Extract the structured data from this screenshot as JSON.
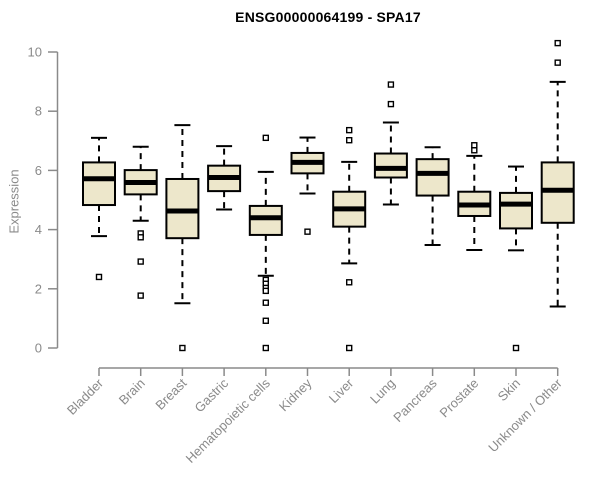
{
  "chart_data": {
    "type": "boxplot",
    "title": "ENSG00000064199 - SPA17",
    "ylabel": "Expression",
    "xlabel": "",
    "ylim": [
      0,
      10
    ],
    "yticks": [
      0,
      2,
      4,
      6,
      8,
      10
    ],
    "grid": false,
    "legend_position": "none",
    "colors": {
      "box_fill": "#EDE7CB",
      "box_stroke": "#000000",
      "median": "#000000",
      "whisker": "#000000",
      "outlier_stroke": "#000000",
      "outlier_fill": "#ffffff",
      "axis": "#8a8a8a",
      "tick_label": "#8a8a8a",
      "title": "#000000",
      "background": "#ffffff"
    },
    "categories": [
      "Bladder",
      "Brain",
      "Breast",
      "Gastric",
      "Hematopoietic cells",
      "Kidney",
      "Liver",
      "Lung",
      "Pancreas",
      "Prostate",
      "Skin",
      "Unknown / Other"
    ],
    "series": [
      {
        "category": "Bladder",
        "whisker_low": 3.78,
        "q1": 4.83,
        "median": 5.72,
        "q3": 6.27,
        "whisker_high": 7.1,
        "outliers": [
          2.4
        ]
      },
      {
        "category": "Brain",
        "whisker_low": 4.3,
        "q1": 5.19,
        "median": 5.59,
        "q3": 6.01,
        "whisker_high": 6.8,
        "outliers": [
          3.87,
          3.74,
          2.92,
          1.77
        ]
      },
      {
        "category": "Breast",
        "whisker_low": 1.51,
        "q1": 3.71,
        "median": 4.63,
        "q3": 5.71,
        "whisker_high": 7.53,
        "outliers": [
          0
        ]
      },
      {
        "category": "Gastric",
        "whisker_low": 4.68,
        "q1": 5.3,
        "median": 5.76,
        "q3": 6.16,
        "whisker_high": 6.82,
        "outliers": []
      },
      {
        "category": "Hematopoietic cells",
        "whisker_low": 2.44,
        "q1": 3.82,
        "median": 4.4,
        "q3": 4.8,
        "whisker_high": 5.95,
        "outliers": [
          7.1,
          2.3,
          2.17,
          2.03,
          1.93,
          1.53,
          0.92,
          0
        ]
      },
      {
        "category": "Kidney",
        "whisker_low": 5.22,
        "q1": 5.9,
        "median": 6.27,
        "q3": 6.59,
        "whisker_high": 7.11,
        "outliers": [
          3.93
        ]
      },
      {
        "category": "Liver",
        "whisker_low": 2.86,
        "q1": 4.1,
        "median": 4.7,
        "q3": 5.28,
        "whisker_high": 6.29,
        "outliers": [
          7.36,
          7.02,
          2.22,
          0
        ]
      },
      {
        "category": "Lung",
        "whisker_low": 4.85,
        "q1": 5.76,
        "median": 6.07,
        "q3": 6.57,
        "whisker_high": 7.62,
        "outliers": [
          8.9,
          8.24
        ]
      },
      {
        "category": "Pancreas",
        "whisker_low": 3.48,
        "q1": 5.15,
        "median": 5.9,
        "q3": 6.38,
        "whisker_high": 6.78,
        "outliers": []
      },
      {
        "category": "Prostate",
        "whisker_low": 3.31,
        "q1": 4.46,
        "median": 4.83,
        "q3": 5.28,
        "whisker_high": 6.49,
        "outliers": [
          6.85,
          6.68
        ]
      },
      {
        "category": "Skin",
        "whisker_low": 3.3,
        "q1": 4.04,
        "median": 4.86,
        "q3": 5.24,
        "whisker_high": 6.13,
        "outliers": [
          0
        ]
      },
      {
        "category": "Unknown / Other",
        "whisker_low": 1.4,
        "q1": 4.23,
        "median": 5.33,
        "q3": 6.27,
        "whisker_high": 8.99,
        "outliers": [
          10.3,
          9.64
        ]
      }
    ]
  }
}
